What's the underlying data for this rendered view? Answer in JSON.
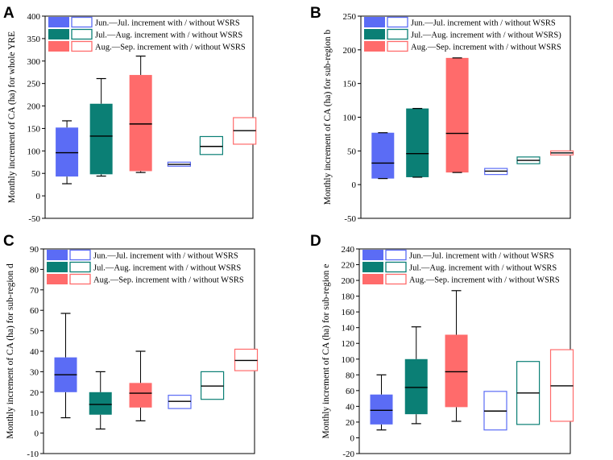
{
  "colors": {
    "blue": "#5b6cf5",
    "teal": "#0b7f75",
    "red": "#ff6b6b",
    "line": "#000000"
  },
  "chart_data": [
    {
      "type": "box",
      "panel_label": "A",
      "ylabel": "Monthly increment of CA (ha) for whole YRE",
      "ylim": [
        -50,
        400
      ],
      "yticks": [
        -50,
        0,
        50,
        100,
        150,
        200,
        250,
        300,
        350,
        400
      ],
      "legend": [
        "Jun.—Jul. increment with / without WSRS",
        "Jul.—Aug. increment with / without WSRS",
        "Aug.—Sep. increment with / without WSRS"
      ],
      "boxes": [
        {
          "series": "Jun.—Jul. with WSRS",
          "color": "blue",
          "filled": true,
          "whisker_low": 27,
          "q1": 43,
          "median": 96,
          "q3": 152,
          "whisker_high": 167
        },
        {
          "series": "Jul.—Aug. with WSRS",
          "color": "teal",
          "filled": true,
          "whisker_low": 44,
          "q1": 48,
          "median": 133,
          "q3": 205,
          "whisker_high": 261
        },
        {
          "series": "Aug.—Sep. with WSRS",
          "color": "red",
          "filled": true,
          "whisker_low": 52,
          "q1": 55,
          "median": 160,
          "q3": 269,
          "whisker_high": 311
        },
        {
          "series": "Jun.—Jul. without WSRS",
          "color": "blue",
          "filled": false,
          "whisker_low": 66,
          "q1": 66,
          "median": 70,
          "q3": 75,
          "whisker_high": 75
        },
        {
          "series": "Jul.—Aug. without WSRS",
          "color": "teal",
          "filled": false,
          "whisker_low": 92,
          "q1": 92,
          "median": 110,
          "q3": 132,
          "whisker_high": 132
        },
        {
          "series": "Aug.—Sep. without WSRS",
          "color": "red",
          "filled": false,
          "whisker_low": 115,
          "q1": 115,
          "median": 145,
          "q3": 174,
          "whisker_high": 174
        }
      ]
    },
    {
      "type": "box",
      "panel_label": "B",
      "ylabel": "Monthly increment of CA (ha) for sub-region b",
      "ylim": [
        -50,
        250
      ],
      "yticks": [
        -50,
        0,
        50,
        100,
        150,
        200,
        250
      ],
      "legend": [
        "Jun.—Jul. increment with / without WSRS",
        "Jul.—Aug. increment with / without WSRS)",
        "Aug.—Sep. increment with / without WSRS"
      ],
      "boxes": [
        {
          "series": "Jun.—Jul. with WSRS",
          "color": "blue",
          "filled": true,
          "whisker_low": 9,
          "q1": 9,
          "median": 32,
          "q3": 77,
          "whisker_high": 77
        },
        {
          "series": "Jul.—Aug. with WSRS",
          "color": "teal",
          "filled": true,
          "whisker_low": 11,
          "q1": 11,
          "median": 46,
          "q3": 113,
          "whisker_high": 113
        },
        {
          "series": "Aug.—Sep. with WSRS",
          "color": "red",
          "filled": true,
          "whisker_low": 18,
          "q1": 18,
          "median": 76,
          "q3": 188,
          "whisker_high": 188
        },
        {
          "series": "Jun.—Jul. without WSRS",
          "color": "blue",
          "filled": false,
          "whisker_low": 15,
          "q1": 15,
          "median": 20,
          "q3": 24,
          "whisker_high": 24
        },
        {
          "series": "Jul.—Aug. without WSRS",
          "color": "teal",
          "filled": false,
          "whisker_low": 31,
          "q1": 31,
          "median": 36,
          "q3": 41,
          "whisker_high": 41
        },
        {
          "series": "Aug.—Sep. without WSRS",
          "color": "red",
          "filled": false,
          "whisker_low": 44,
          "q1": 44,
          "median": 47,
          "q3": 50,
          "whisker_high": 50
        }
      ]
    },
    {
      "type": "box",
      "panel_label": "C",
      "ylabel": "Monthly increment of CA (ha) for sub-region d",
      "ylim": [
        -10,
        90
      ],
      "yticks": [
        -10,
        0,
        10,
        20,
        30,
        40,
        50,
        60,
        70,
        80,
        90
      ],
      "legend": [
        "Jun.—Jul. increment with / without WSRS",
        "Jul.—Aug. increment with / without WSRS",
        "Aug.—Sep. increment with / without WSRS"
      ],
      "boxes": [
        {
          "series": "Jun.—Jul. with WSRS",
          "color": "blue",
          "filled": true,
          "whisker_low": 7.5,
          "q1": 20,
          "median": 28.5,
          "q3": 37,
          "whisker_high": 58.5
        },
        {
          "series": "Jul.—Aug. with WSRS",
          "color": "teal",
          "filled": true,
          "whisker_low": 2,
          "q1": 9,
          "median": 14,
          "q3": 20,
          "whisker_high": 30
        },
        {
          "series": "Aug.—Sep. with WSRS",
          "color": "red",
          "filled": true,
          "whisker_low": 6,
          "q1": 12.5,
          "median": 19.5,
          "q3": 24.5,
          "whisker_high": 40
        },
        {
          "series": "Jun.—Jul. without WSRS",
          "color": "blue",
          "filled": false,
          "whisker_low": 12,
          "q1": 12,
          "median": 15.5,
          "q3": 18.5,
          "whisker_high": 18.5
        },
        {
          "series": "Jul.—Aug. without WSRS",
          "color": "teal",
          "filled": false,
          "whisker_low": 16.5,
          "q1": 16.5,
          "median": 23,
          "q3": 30,
          "whisker_high": 30
        },
        {
          "series": "Aug.—Sep. without WSRS",
          "color": "red",
          "filled": false,
          "whisker_low": 30.5,
          "q1": 30.5,
          "median": 35.5,
          "q3": 41,
          "whisker_high": 41
        }
      ]
    },
    {
      "type": "box",
      "panel_label": "D",
      "ylabel": "Monthly increment of CA (ha) for sub-region e",
      "ylim": [
        -20,
        240
      ],
      "yticks": [
        -20,
        0,
        20,
        40,
        60,
        80,
        100,
        120,
        140,
        160,
        180,
        200,
        220,
        240
      ],
      "legend": [
        "Jun.—Jul. increment with / without WSRS",
        "Jul.—Aug. increment with / without WSRS",
        "Aug.—Sep. increment with / without WSRS"
      ],
      "boxes": [
        {
          "series": "Jun.—Jul. with WSRS",
          "color": "blue",
          "filled": true,
          "whisker_low": 10,
          "q1": 17,
          "median": 35,
          "q3": 55,
          "whisker_high": 80
        },
        {
          "series": "Jul.—Aug. with WSRS",
          "color": "teal",
          "filled": true,
          "whisker_low": 18,
          "q1": 30,
          "median": 64,
          "q3": 100,
          "whisker_high": 141
        },
        {
          "series": "Aug.—Sep. with WSRS",
          "color": "red",
          "filled": true,
          "whisker_low": 21,
          "q1": 39,
          "median": 84,
          "q3": 131,
          "whisker_high": 187
        },
        {
          "series": "Jun.—Jul. without WSRS",
          "color": "blue",
          "filled": false,
          "whisker_low": 10,
          "q1": 10,
          "median": 34,
          "q3": 59,
          "whisker_high": 59
        },
        {
          "series": "Jul.—Aug. without WSRS",
          "color": "teal",
          "filled": false,
          "whisker_low": 17,
          "q1": 17,
          "median": 57,
          "q3": 97,
          "whisker_high": 97
        },
        {
          "series": "Aug.—Sep. without WSRS",
          "color": "red",
          "filled": false,
          "whisker_low": 21,
          "q1": 21,
          "median": 66,
          "q3": 112,
          "whisker_high": 112
        }
      ]
    }
  ]
}
